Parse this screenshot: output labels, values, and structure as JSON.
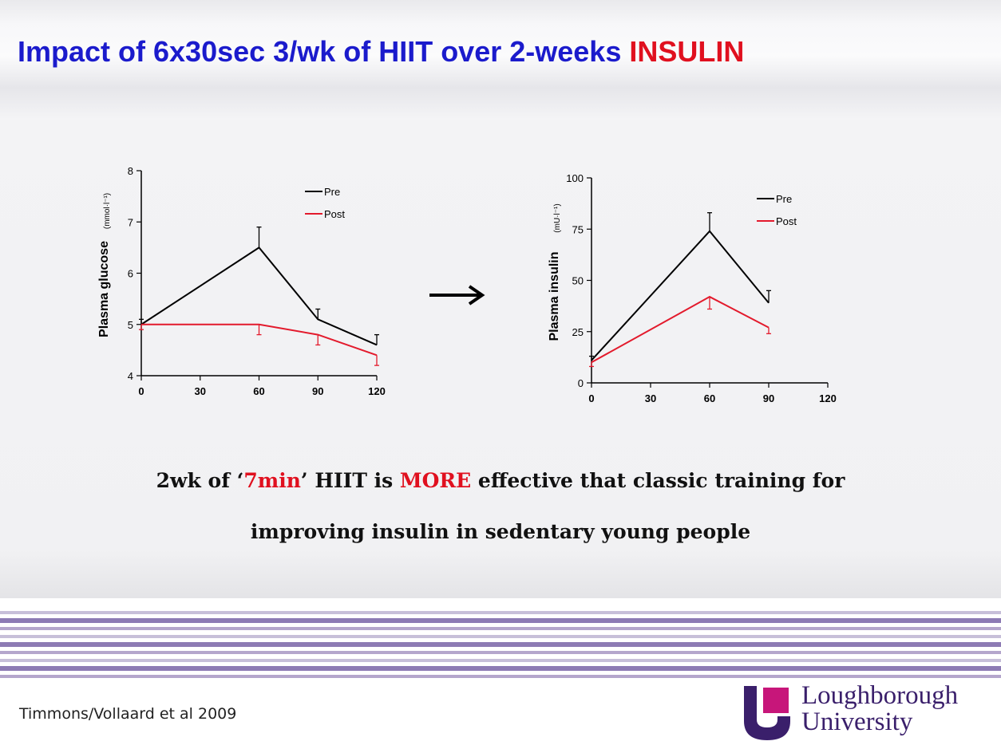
{
  "header": {
    "title_main": "Impact of 6x30sec 3/wk of HIIT over 2-weeks ",
    "title_accent": "INSULIN"
  },
  "statement": {
    "line1_a": "2wk of ‘",
    "line1_accent1": "7min",
    "line1_b": "’ HIIT is ",
    "line1_accent2": "MORE",
    "line1_c": " effective that classic training for",
    "line2": "improving insulin in sedentary young people"
  },
  "footer": {
    "citation": "Timmons/Vollaard et al 2009",
    "logo_line1": "Loughborough",
    "logo_line2": "University"
  },
  "colors": {
    "title_blue": "#1b1bcc",
    "accent_red": "#e0101f",
    "pre": "#000000",
    "post": "#e31a2c",
    "university_purple": "#3a1f6b"
  },
  "chart_data": [
    {
      "type": "line",
      "ylabel": "Plasma glucose",
      "yunit": "(mmol·l⁻¹)",
      "x": [
        0,
        30,
        60,
        90,
        120
      ],
      "xticks": [
        "0",
        "30",
        "60",
        "90",
        "120"
      ],
      "ylim": [
        4,
        8
      ],
      "yticks": [
        "4",
        "5",
        "6",
        "7",
        "8"
      ],
      "legend_position": "top-right",
      "series": [
        {
          "name": "Pre",
          "color": "#000000",
          "x": [
            0,
            60,
            90,
            120
          ],
          "values": [
            5.0,
            6.5,
            5.1,
            4.6
          ],
          "err": [
            0.1,
            0.4,
            0.2,
            0.2
          ],
          "err_dir": "up"
        },
        {
          "name": "Post",
          "color": "#e31a2c",
          "x": [
            0,
            60,
            90,
            120
          ],
          "values": [
            5.0,
            5.0,
            4.8,
            4.4
          ],
          "err": [
            0.1,
            0.2,
            0.2,
            0.2
          ],
          "err_dir": "down"
        }
      ]
    },
    {
      "type": "line",
      "ylabel": "Plasma insulin",
      "yunit": "(mU·l⁻¹)",
      "x": [
        0,
        30,
        60,
        90,
        120
      ],
      "xticks": [
        "0",
        "30",
        "60",
        "90",
        "120"
      ],
      "ylim": [
        0,
        100
      ],
      "yticks": [
        "0",
        "25",
        "50",
        "75",
        "100"
      ],
      "legend_position": "top-right",
      "series": [
        {
          "name": "Pre",
          "color": "#000000",
          "x": [
            0,
            60,
            90
          ],
          "values": [
            11,
            74,
            39
          ],
          "err": [
            2,
            9,
            6
          ],
          "err_dir": "up"
        },
        {
          "name": "Post",
          "color": "#e31a2c",
          "x": [
            0,
            60,
            90
          ],
          "values": [
            10,
            42,
            27
          ],
          "err": [
            2,
            6,
            3
          ],
          "err_dir": "down"
        }
      ]
    }
  ]
}
